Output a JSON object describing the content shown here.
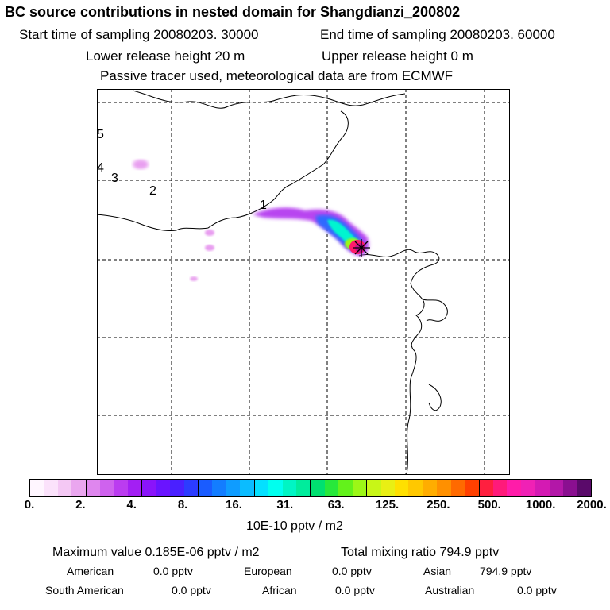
{
  "header": {
    "title": "BC  source contributions in nested domain for Shangdianzi_200802",
    "start_label": "Start time of sampling 20080203. 30000",
    "end_label": "End time of sampling 20080203. 60000",
    "lower_release": "Lower release height   20 m",
    "upper_release": "Upper release height    0 m",
    "tracer_note": "Passive tracer used, meteorological data are from ECMWF"
  },
  "map": {
    "day_labels": [
      "1",
      "2",
      "3",
      "4",
      "5"
    ],
    "receptor_marker": "station-marker-icon"
  },
  "colorbar": {
    "colors": [
      "#fff6ff",
      "#fbe2fb",
      "#f4c8f4",
      "#eaa6ef",
      "#df86ee",
      "#cf62ee",
      "#bb3cf0",
      "#a31ff3",
      "#8a14fa",
      "#6a14ff",
      "#4a20ff",
      "#2c3cff",
      "#1a5cff",
      "#137dff",
      "#0f9cff",
      "#0bbcff",
      "#04e0ff",
      "#00ffef",
      "#00f5c4",
      "#00ec9c",
      "#00e070",
      "#27e83b",
      "#63f21b",
      "#9cf717",
      "#c8f617",
      "#e9ef14",
      "#ffe000",
      "#ffc800",
      "#ffad00",
      "#ff9000",
      "#ff6a00",
      "#ff4000",
      "#ff1f3f",
      "#ff1a7a",
      "#ff1ca9",
      "#f021b5",
      "#d41ab3",
      "#b317a8",
      "#8a0f90",
      "#5a0a6a"
    ],
    "tick_labels": [
      "0.",
      "2.",
      "4.",
      "8.",
      "16.",
      "31.",
      "63.",
      "125.",
      "250.",
      "500.",
      "1000.",
      "2000."
    ],
    "units": "10E-10 pptv / m2"
  },
  "footer": {
    "max_value": "Maximum value  0.185E-06 pptv / m2",
    "total_mixing": "Total mixing ratio      794.9 pptv",
    "regions": [
      {
        "name": "American",
        "value": "0.0 pptv"
      },
      {
        "name": "European",
        "value": "0.0 pptv"
      },
      {
        "name": "Asian",
        "value": "794.9 pptv"
      },
      {
        "name": "South American",
        "value": "0.0 pptv"
      },
      {
        "name": "African",
        "value": "0.0 pptv"
      },
      {
        "name": "Australian",
        "value": "0.0 pptv"
      }
    ]
  }
}
